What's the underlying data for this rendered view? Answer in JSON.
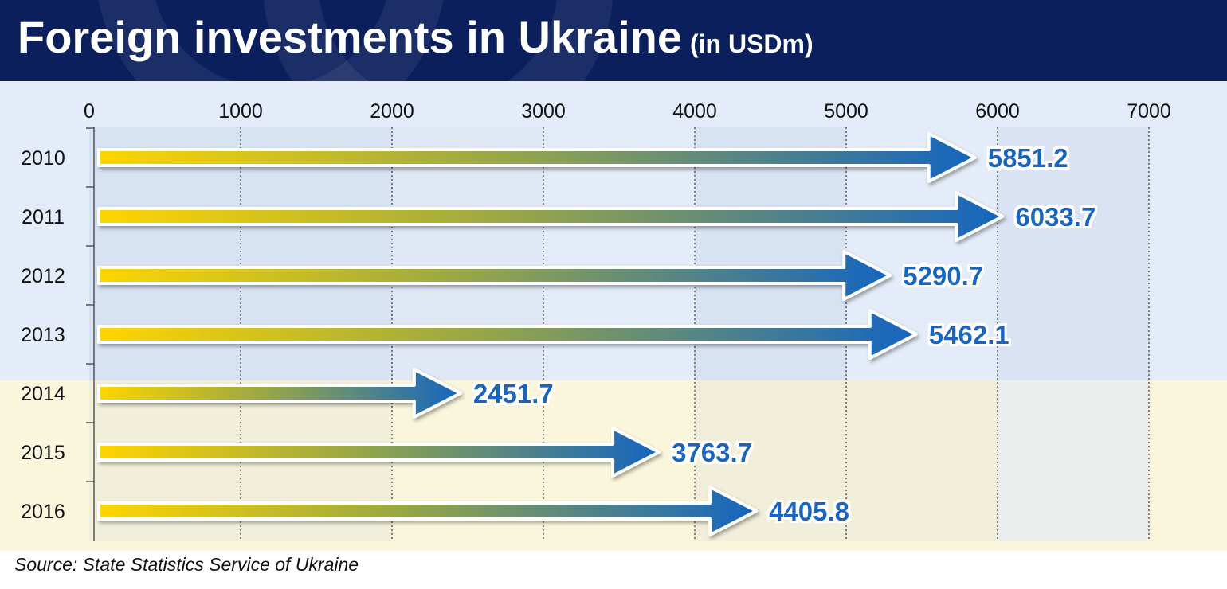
{
  "header": {
    "title": "Foreign investments in Ukraine",
    "subtitle": "(in USDm)"
  },
  "source": "Source: State Statistics Service of Ukraine",
  "colors": {
    "header_bg": "#0b1f5c",
    "arrow_start": "#ffd500",
    "arrow_end": "#1565c0",
    "value_label": "#1565c0",
    "flag_blue": "#d6e4f5",
    "flag_yellow": "#faf6dc"
  },
  "chart_data": {
    "type": "bar",
    "orientation": "horizontal",
    "mark_style": "gradient arrows (yellow to blue)",
    "title": "Foreign investments in Ukraine",
    "subtitle": "(in USDm)",
    "categories": [
      "2010",
      "2011",
      "2012",
      "2013",
      "2014",
      "2015",
      "2016"
    ],
    "values": [
      5851.2,
      6033.7,
      5290.7,
      5462.1,
      2451.7,
      3763.7,
      4405.8
    ],
    "value_labels": [
      "5851.2",
      "6033.7",
      "5290.7",
      "5462.1",
      "2451.7",
      "3763.7",
      "4405.8"
    ],
    "x_ticks": [
      0,
      1000,
      2000,
      3000,
      4000,
      5000,
      6000,
      7000
    ],
    "x_tick_labels": [
      "0",
      "1000",
      "2000",
      "3000",
      "4000",
      "5000",
      "6000",
      "7000"
    ],
    "xlim": [
      0,
      7000
    ],
    "x_axis_position": "top",
    "grid": "vertical dotted",
    "legend": "none"
  }
}
